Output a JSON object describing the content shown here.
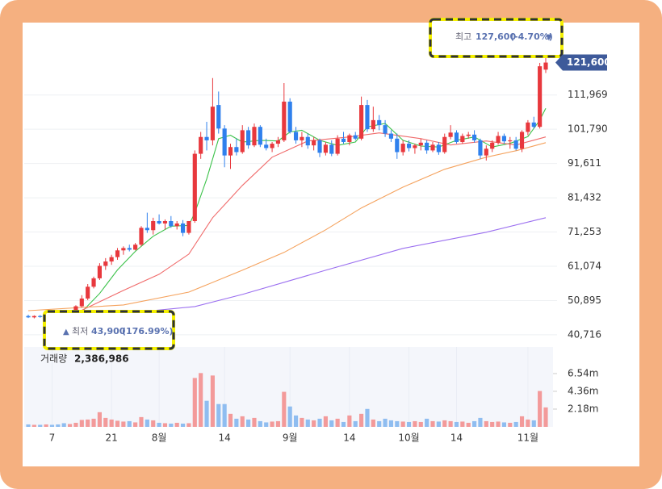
{
  "chart_data": {
    "type": "candlestick",
    "open": [
      46300,
      45900,
      46300,
      46000,
      46500,
      46200,
      46100,
      45700,
      46500,
      49200,
      51500,
      55000,
      57500,
      61200,
      62500,
      63800,
      65800,
      66500,
      66000,
      67500,
      72500,
      71800,
      74500,
      73800,
      74500,
      73000,
      73800,
      71000,
      74500,
      94500,
      99500,
      98500,
      109000,
      102000,
      94000,
      96500,
      95000,
      101500,
      97000,
      102500,
      97200,
      96200,
      97500,
      98500,
      110000,
      101000,
      98500,
      99500,
      97000,
      98500,
      94800,
      97200,
      94500,
      99000,
      98000,
      100000,
      99000,
      109000,
      101800,
      104500,
      103000,
      100500,
      99000,
      95000,
      97500,
      96200,
      97000,
      97800,
      95500,
      97200,
      95000,
      99500,
      100800,
      98000,
      99800,
      100200,
      98500,
      94000,
      96000,
      97800,
      99800,
      98200,
      98500,
      96000,
      101000,
      103800,
      102500,
      119500
    ],
    "high": [
      46700,
      46500,
      46600,
      46800,
      47000,
      46700,
      46400,
      47000,
      49500,
      52500,
      55800,
      58000,
      62000,
      63500,
      64500,
      66500,
      67000,
      67500,
      68000,
      73000,
      77000,
      75500,
      76500,
      75000,
      76000,
      74500,
      74800,
      74500,
      95500,
      101000,
      104000,
      117000,
      113000,
      103000,
      97500,
      99000,
      103000,
      102500,
      103500,
      103000,
      99000,
      98000,
      99500,
      115500,
      111000,
      102500,
      101000,
      100500,
      99500,
      99000,
      98000,
      98500,
      100000,
      101000,
      100500,
      101000,
      111500,
      110500,
      108500,
      106000,
      104500,
      101500,
      100500,
      98500,
      98500,
      97500,
      99000,
      98500,
      98000,
      98000,
      100500,
      103000,
      101500,
      100500,
      101000,
      101500,
      99000,
      97000,
      98500,
      101000,
      100500,
      99500,
      99500,
      101500,
      104500,
      105500,
      121500,
      127600
    ],
    "low": [
      45700,
      45600,
      45800,
      45800,
      46000,
      45900,
      43900,
      45500,
      46200,
      48800,
      51000,
      54500,
      57000,
      60000,
      61500,
      63000,
      64500,
      65500,
      65800,
      67000,
      71000,
      70500,
      73500,
      72000,
      72500,
      72000,
      70000,
      70500,
      74000,
      93000,
      95500,
      97000,
      100500,
      90500,
      90000,
      94000,
      94500,
      96000,
      96500,
      96500,
      95500,
      95000,
      96500,
      98000,
      100500,
      97500,
      96500,
      96000,
      95500,
      93500,
      94000,
      93800,
      94000,
      97500,
      97000,
      98500,
      98500,
      101000,
      101000,
      101500,
      99500,
      98000,
      93000,
      94000,
      95200,
      94500,
      95500,
      94500,
      95000,
      94200,
      94500,
      98800,
      97500,
      97500,
      99000,
      97800,
      93000,
      92500,
      95000,
      97200,
      97500,
      96000,
      95500,
      95000,
      100000,
      102000,
      102000,
      118500
    ],
    "close": [
      45900,
      46300,
      46000,
      46500,
      46200,
      46100,
      45700,
      46500,
      49200,
      51500,
      55000,
      57500,
      61200,
      62500,
      63800,
      65800,
      66500,
      66000,
      67500,
      72500,
      71800,
      74500,
      73800,
      74500,
      73000,
      73800,
      71000,
      74500,
      94500,
      99500,
      98500,
      108500,
      102000,
      94000,
      96500,
      95000,
      101500,
      97000,
      102500,
      97200,
      96200,
      97500,
      98500,
      110000,
      101000,
      98500,
      99500,
      97000,
      98500,
      94800,
      97200,
      94500,
      99000,
      98000,
      100000,
      99000,
      109000,
      101800,
      104500,
      103000,
      100500,
      99000,
      95000,
      97500,
      96200,
      97000,
      97800,
      95500,
      97200,
      95000,
      99500,
      100800,
      98000,
      99800,
      100200,
      98500,
      94000,
      96000,
      97800,
      99800,
      98200,
      98500,
      96000,
      101000,
      103800,
      102500,
      120500,
      121600
    ],
    "volume": [
      300000,
      250000,
      250000,
      300000,
      250000,
      300000,
      450000,
      350000,
      500000,
      850000,
      900000,
      1000000,
      1800000,
      1100000,
      900000,
      750000,
      650000,
      700000,
      550000,
      1200000,
      900000,
      800000,
      500000,
      450000,
      400000,
      500000,
      400000,
      450000,
      6000000,
      6600000,
      3200000,
      6300000,
      2800000,
      2800000,
      1600000,
      1000000,
      1300000,
      900000,
      1100000,
      700000,
      550000,
      650000,
      700000,
      4300000,
      2500000,
      1400000,
      1100000,
      900000,
      800000,
      1000000,
      1300000,
      800000,
      1000000,
      600000,
      1400000,
      700000,
      1600000,
      2200000,
      900000,
      700000,
      1000000,
      800000,
      700000,
      650000,
      600000,
      700000,
      600000,
      1000000,
      700000,
      650000,
      800000,
      700000,
      600000,
      650000,
      500000,
      700000,
      1100000,
      700000,
      600000,
      650000,
      550000,
      500000,
      600000,
      1300000,
      900000,
      800000,
      4400000,
      2386986
    ],
    "up_color": "#e8383d",
    "down_color": "#2f80ed",
    "up_volume_color": "#f39a9a",
    "down_volume_color": "#8fbdf0",
    "ma_lines": [
      {
        "color": "#3cc24a",
        "x": [
          7,
          9,
          12,
          15,
          18,
          21,
          24,
          27,
          28,
          30,
          32,
          34,
          36,
          39,
          42,
          44,
          46,
          49,
          52,
          55,
          57,
          60,
          63,
          66,
          69,
          72,
          75,
          78,
          81,
          84,
          86,
          87
        ],
        "values": [
          46000,
          47500,
          53000,
          60000,
          65500,
          70000,
          73000,
          73200,
          77000,
          87000,
          99000,
          100000,
          98000,
          98500,
          98300,
          101000,
          101500,
          98500,
          97000,
          98000,
          102500,
          103500,
          98500,
          96800,
          96500,
          98500,
          99500,
          96500,
          97600,
          99600,
          104500,
          108000
        ]
      },
      {
        "color": "#f06a6a",
        "x": [
          6,
          16,
          22,
          27,
          31,
          36,
          41,
          47,
          54,
          59,
          66,
          71,
          77,
          82,
          87
        ],
        "values": [
          45500,
          53900,
          58700,
          64700,
          75500,
          85100,
          93500,
          98300,
          99500,
          100700,
          99000,
          97100,
          98300,
          97100,
          99500
        ]
      },
      {
        "color": "#f5a25d",
        "x": [
          0,
          16,
          27,
          36,
          43,
          50,
          56,
          63,
          70,
          77,
          82,
          87
        ],
        "values": [
          47900,
          49600,
          53400,
          59900,
          65200,
          71900,
          78400,
          84600,
          89900,
          93500,
          95400,
          97800
        ]
      },
      {
        "color": "#9b6ff0",
        "x": [
          3,
          28,
          36,
          50,
          63,
          77,
          87
        ],
        "values": [
          44800,
          49100,
          52700,
          59900,
          66400,
          71200,
          75500
        ]
      }
    ],
    "ylim": [
      37100,
      133000
    ],
    "yticks": [
      {
        "value": 40716,
        "label": "40,716"
      },
      {
        "value": 50895,
        "label": "50,895"
      },
      {
        "value": 61074,
        "label": "61,074"
      },
      {
        "value": 71253,
        "label": "71,253"
      },
      {
        "value": 81432,
        "label": "81,432"
      },
      {
        "value": 91611,
        "label": "91,611"
      },
      {
        "value": 101790,
        "label": "101,790"
      },
      {
        "value": 111969,
        "label": "111,969"
      }
    ],
    "y2lim": [
      0,
      9800000
    ],
    "y2ticks": [
      {
        "value": 2180000,
        "label": "2.18m"
      },
      {
        "value": 4360000,
        "label": "4.36m"
      },
      {
        "value": 6540000,
        "label": "6.54m"
      }
    ],
    "xticks": [
      {
        "value": 4,
        "label": "7"
      },
      {
        "value": 14,
        "label": "21"
      },
      {
        "value": 22,
        "label": "8월"
      },
      {
        "value": 33,
        "label": "14"
      },
      {
        "value": 44,
        "label": "9월"
      },
      {
        "value": 54,
        "label": "14"
      },
      {
        "value": 64,
        "label": "10월"
      },
      {
        "value": 72,
        "label": "14"
      },
      {
        "value": 84,
        "label": "11월"
      }
    ],
    "grid": true,
    "last_price_label": "121,600",
    "volume_title": "거래량",
    "last_volume_label": "2,386,986",
    "high_marker": {
      "arrow": "▼",
      "title": "최고",
      "price": "127,600",
      "change": "(-4.70%)"
    },
    "low_marker": {
      "arrow": "▲",
      "title": "최저",
      "price": "43,900",
      "change": "(176.99%)"
    }
  }
}
